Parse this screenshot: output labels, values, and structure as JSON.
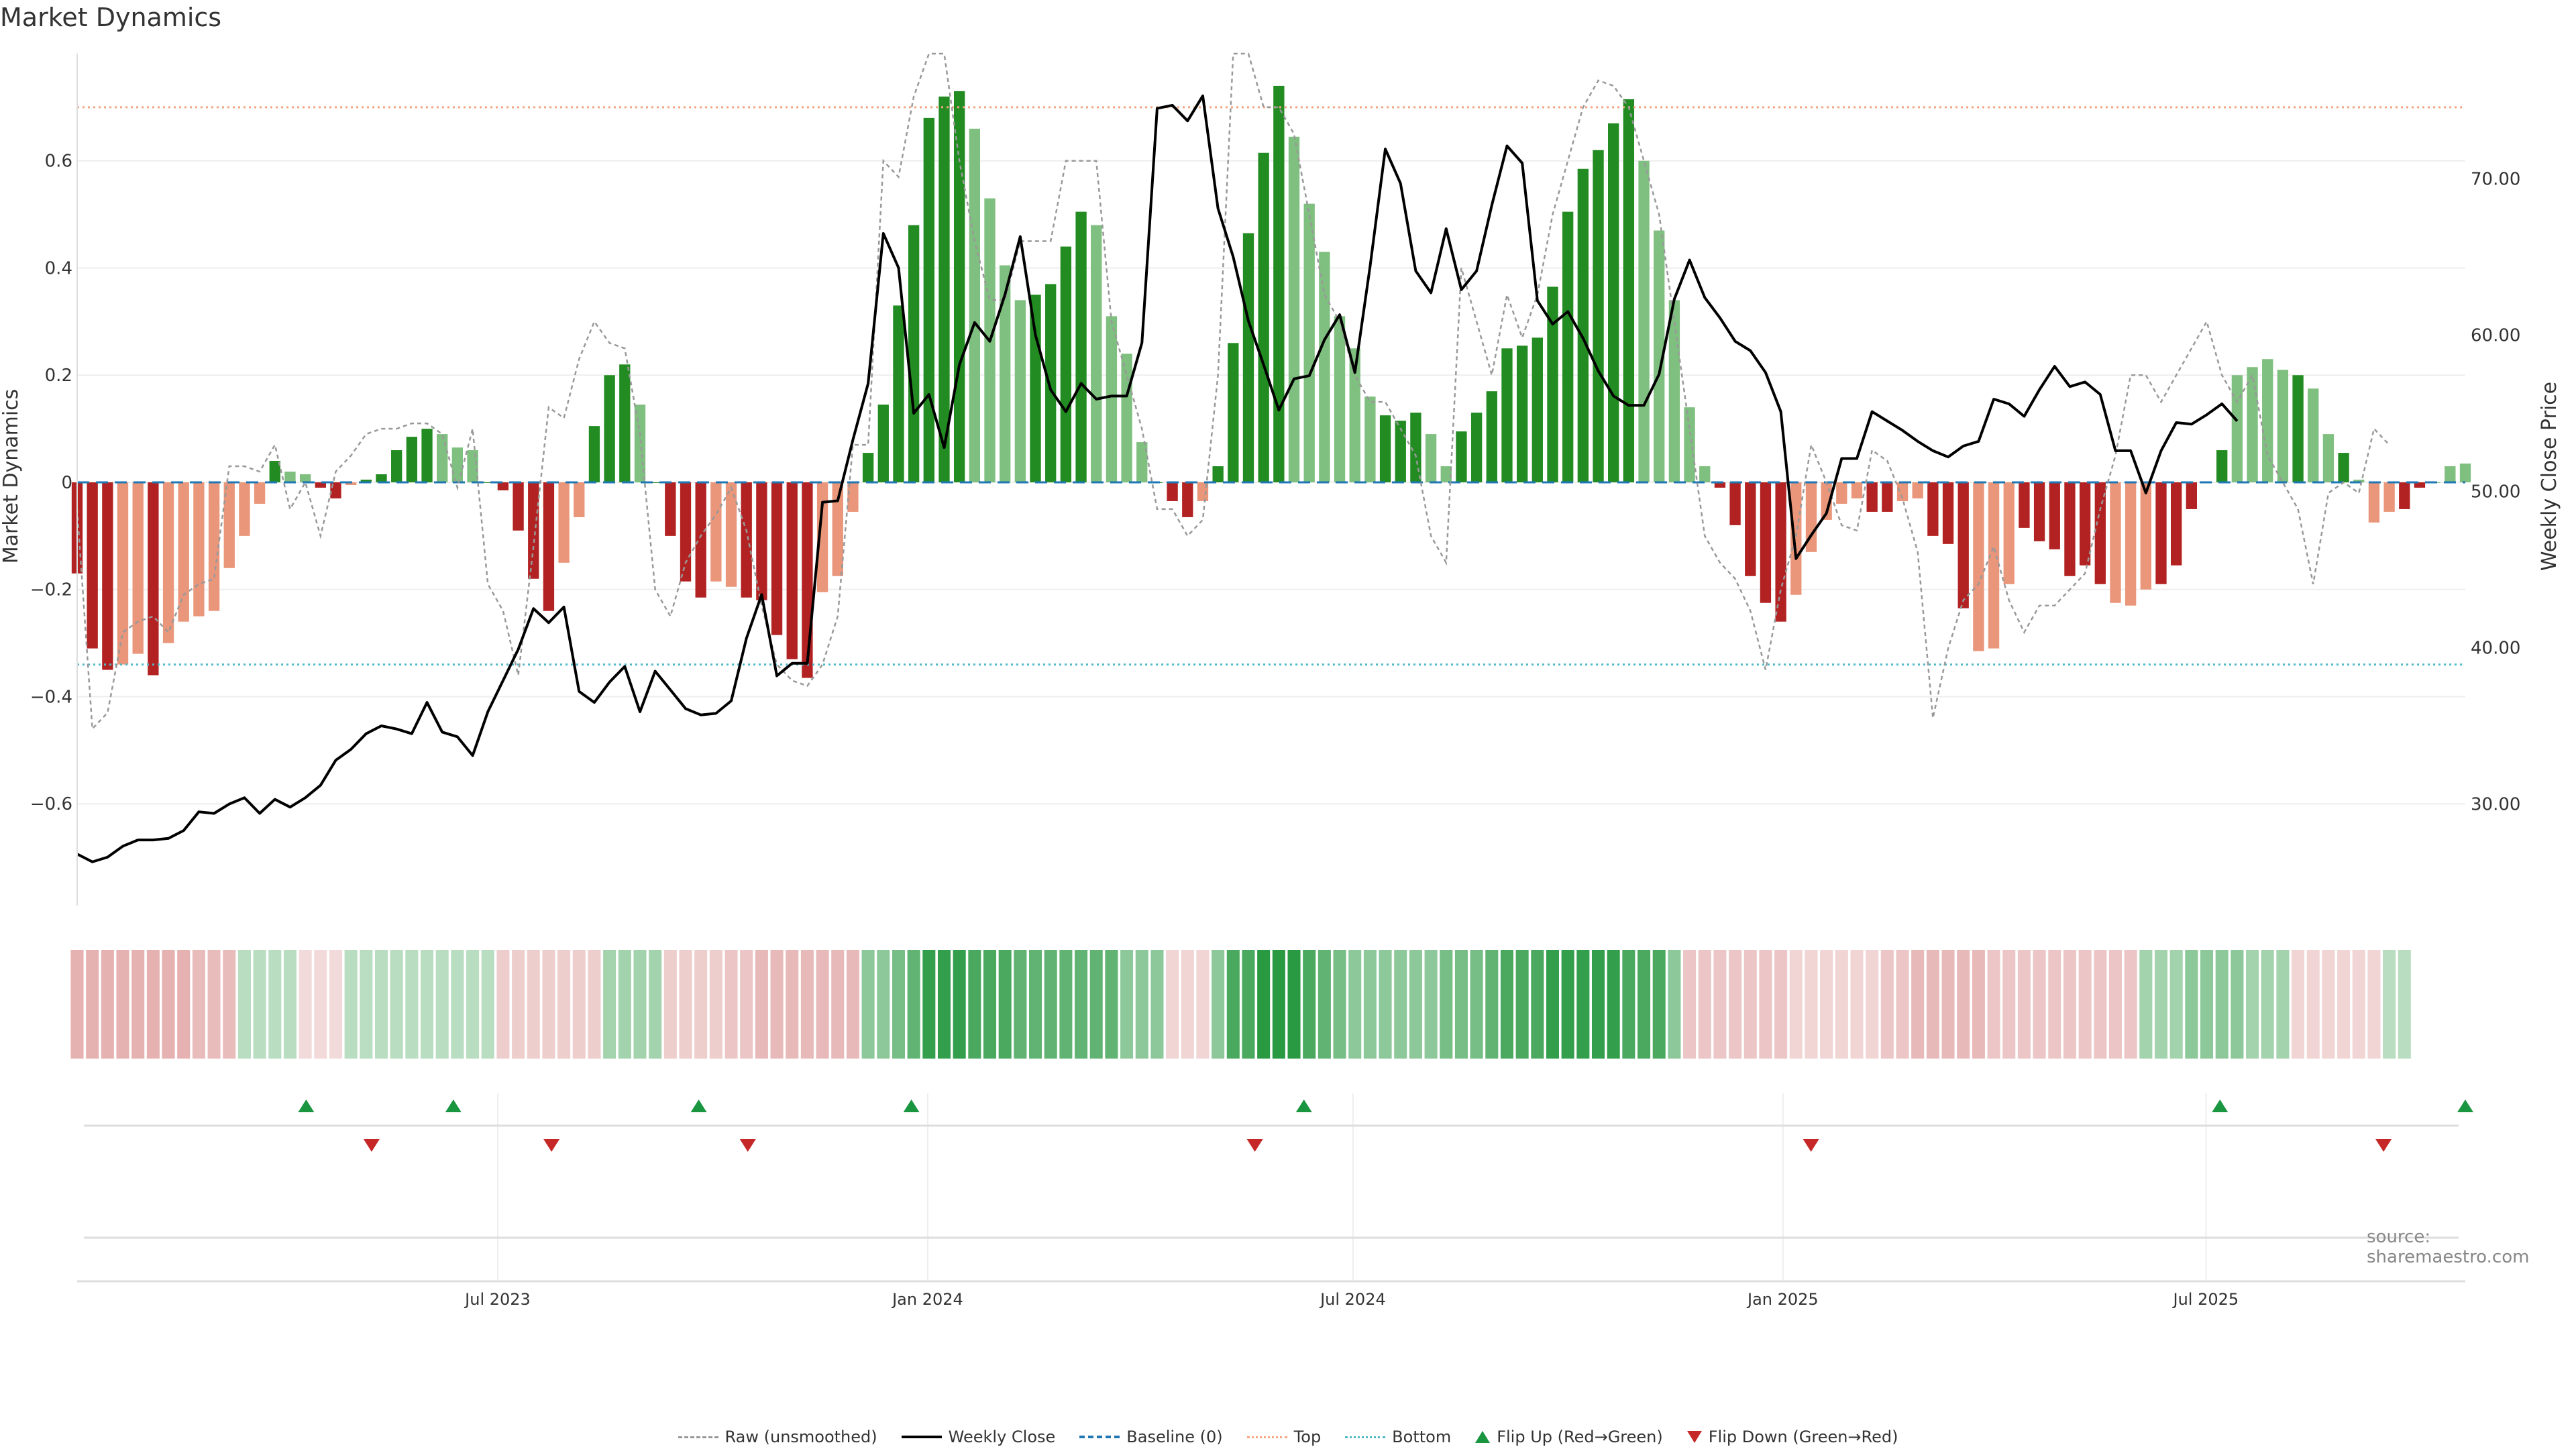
{
  "title": "Market Dynamics",
  "source": "source: sharemaestro.com",
  "colors": {
    "strong_green": "#228b22",
    "light_green": "#7fbf7f",
    "strong_red": "#b22222",
    "light_red": "#e9967a",
    "price": "#000000",
    "raw": "#999999",
    "baseline": "#1f77b4",
    "top": "#f4a582",
    "bottom": "#4fb9c8",
    "flip_up": "#1a9641",
    "flip_down": "#c62828"
  },
  "chart_data": {
    "type": "bar",
    "title": "Market Dynamics",
    "ylabel_left": "Market Dynamics",
    "ylabel_right": "Weekly Close Price",
    "left_ylim": [
      -0.79,
      0.8
    ],
    "left_yticks": [
      "0.6",
      "0.4",
      "0.2",
      "0",
      "−0.2",
      "−0.4",
      "−0.6"
    ],
    "left_ytick_values": [
      0.6,
      0.4,
      0.2,
      0,
      -0.2,
      -0.4,
      -0.6
    ],
    "right_ylim": [
      23.5,
      78
    ],
    "right_yticks": [
      "70.00",
      "60.00",
      "50.00",
      "40.00",
      "30.00"
    ],
    "right_ytick_values": [
      70,
      60,
      50,
      40,
      30
    ],
    "x_start": "2023-01-02",
    "x_end": "2025-10-20",
    "xticks": [
      {
        "date": "2023-07-01",
        "label": "Jul 2023"
      },
      {
        "date": "2024-01-01",
        "label": "Jan 2024"
      },
      {
        "date": "2024-07-01",
        "label": "Jul 2024"
      },
      {
        "date": "2025-01-01",
        "label": "Jan 2025"
      },
      {
        "date": "2025-07-01",
        "label": "Jul 2025"
      }
    ],
    "grid": true,
    "legend_position": "bottom-center",
    "top_level": 0.7,
    "bottom_level": -0.34,
    "baseline": 0,
    "dynamics": [
      -0.17,
      -0.31,
      -0.35,
      -0.34,
      -0.32,
      -0.36,
      -0.3,
      -0.26,
      -0.25,
      -0.24,
      -0.16,
      -0.1,
      -0.04,
      0.04,
      0.02,
      0.015,
      -0.01,
      -0.03,
      -0.005,
      0.005,
      0.015,
      0.06,
      0.085,
      0.1,
      0.09,
      0.065,
      0.06,
      0.0,
      -0.015,
      -0.09,
      -0.18,
      -0.24,
      -0.15,
      -0.065,
      0.105,
      0.2,
      0.22,
      0.145,
      0.0,
      -0.1,
      -0.185,
      -0.215,
      -0.185,
      -0.195,
      -0.215,
      -0.22,
      -0.285,
      -0.33,
      -0.365,
      -0.205,
      -0.175,
      -0.055,
      0.055,
      0.145,
      0.33,
      0.48,
      0.68,
      0.72,
      0.73,
      0.66,
      0.53,
      0.405,
      0.34,
      0.35,
      0.37,
      0.44,
      0.505,
      0.48,
      0.31,
      0.24,
      0.075,
      0.0,
      -0.035,
      -0.065,
      -0.035,
      0.03,
      0.26,
      0.465,
      0.615,
      0.74,
      0.645,
      0.52,
      0.43,
      0.31,
      0.25,
      0.16,
      0.125,
      0.115,
      0.13,
      0.09,
      0.03,
      0.095,
      0.13,
      0.17,
      0.25,
      0.255,
      0.27,
      0.365,
      0.505,
      0.585,
      0.62,
      0.67,
      0.715,
      0.6,
      0.47,
      0.34,
      0.14,
      0.03,
      -0.01,
      -0.08,
      -0.175,
      -0.225,
      -0.26,
      -0.21,
      -0.13,
      -0.07,
      -0.04,
      -0.03,
      -0.055,
      -0.055,
      -0.035,
      -0.03,
      -0.1,
      -0.115,
      -0.235,
      -0.315,
      -0.31,
      -0.19,
      -0.085,
      -0.11,
      -0.125,
      -0.175,
      -0.155,
      -0.19,
      -0.225,
      -0.23,
      -0.2,
      -0.19,
      -0.155,
      -0.05,
      0.0,
      0.06,
      0.2,
      0.215,
      0.23,
      0.21,
      0.2,
      0.175,
      0.09,
      0.055,
      0.005,
      -0.075,
      -0.055,
      -0.05,
      -0.01,
      0.0,
      0.03,
      0.035
    ],
    "bar_shade": [
      "s",
      "s",
      "s",
      "l",
      "l",
      "s",
      "l",
      "l",
      "l",
      "l",
      "l",
      "l",
      "l",
      "s",
      "l",
      "l",
      "s",
      "s",
      "l",
      "s",
      "s",
      "s",
      "s",
      "s",
      "l",
      "l",
      "l",
      "s",
      "s",
      "s",
      "s",
      "s",
      "l",
      "l",
      "s",
      "s",
      "s",
      "l",
      "s",
      "s",
      "s",
      "s",
      "l",
      "l",
      "s",
      "s",
      "s",
      "s",
      "s",
      "l",
      "l",
      "l",
      "s",
      "s",
      "s",
      "s",
      "s",
      "s",
      "s",
      "l",
      "l",
      "l",
      "l",
      "s",
      "s",
      "s",
      "s",
      "l",
      "l",
      "l",
      "l",
      "s",
      "s",
      "s",
      "l",
      "s",
      "s",
      "s",
      "s",
      "s",
      "l",
      "l",
      "l",
      "l",
      "l",
      "l",
      "s",
      "s",
      "s",
      "l",
      "l",
      "s",
      "s",
      "s",
      "s",
      "s",
      "s",
      "s",
      "s",
      "s",
      "s",
      "s",
      "s",
      "l",
      "l",
      "l",
      "l",
      "l",
      "s",
      "s",
      "s",
      "s",
      "s",
      "l",
      "l",
      "l",
      "l",
      "l",
      "s",
      "s",
      "l",
      "l",
      "s",
      "s",
      "s",
      "l",
      "l",
      "l",
      "s",
      "s",
      "s",
      "s",
      "s",
      "s",
      "l",
      "l",
      "l",
      "s",
      "s",
      "s",
      "s",
      "s",
      "l",
      "l",
      "l",
      "l",
      "s",
      "l",
      "l",
      "s",
      "l",
      "l",
      "l",
      "s",
      "s"
    ],
    "raw": [
      -0.05,
      -0.46,
      -0.43,
      -0.28,
      -0.26,
      -0.25,
      -0.28,
      -0.21,
      -0.19,
      -0.18,
      0.03,
      0.03,
      0.02,
      0.07,
      -0.05,
      0.0,
      -0.1,
      0.02,
      0.05,
      0.09,
      0.1,
      0.1,
      0.11,
      0.11,
      0.09,
      -0.01,
      0.1,
      -0.19,
      -0.24,
      -0.36,
      -0.12,
      0.14,
      0.12,
      0.23,
      0.3,
      0.26,
      0.25,
      0.09,
      -0.2,
      -0.25,
      -0.15,
      -0.1,
      -0.06,
      -0.01,
      -0.09,
      -0.23,
      -0.34,
      -0.37,
      -0.38,
      -0.34,
      -0.25,
      0.07,
      0.07,
      0.6,
      0.57,
      0.72,
      0.8,
      0.8,
      0.6,
      0.45,
      0.34,
      0.34,
      0.45,
      0.45,
      0.45,
      0.6,
      0.6,
      0.6,
      0.3,
      0.2,
      0.1,
      -0.05,
      -0.05,
      -0.1,
      -0.07,
      0.2,
      0.8,
      0.8,
      0.7,
      0.7,
      0.65,
      0.5,
      0.35,
      0.3,
      0.2,
      0.15,
      0.15,
      0.1,
      0.05,
      -0.1,
      -0.15,
      0.4,
      0.3,
      0.2,
      0.35,
      0.27,
      0.35,
      0.5,
      0.6,
      0.7,
      0.75,
      0.74,
      0.7,
      0.6,
      0.5,
      0.3,
      0.1,
      -0.1,
      -0.15,
      -0.18,
      -0.24,
      -0.35,
      -0.2,
      -0.1,
      0.07,
      0.0,
      -0.08,
      -0.09,
      0.06,
      0.04,
      -0.03,
      -0.13,
      -0.44,
      -0.31,
      -0.22,
      -0.19,
      -0.12,
      -0.22,
      -0.28,
      -0.23,
      -0.23,
      -0.2,
      -0.17,
      -0.05,
      0.05,
      0.2,
      0.2,
      0.15,
      0.2,
      0.25,
      0.3,
      0.2,
      0.15,
      0.2,
      0.05,
      0.0,
      -0.05,
      -0.19,
      -0.02,
      0.0,
      -0.02,
      0.1,
      0.07
    ],
    "weekly_close": [
      26.8,
      26.3,
      26.6,
      27.3,
      27.7,
      27.7,
      27.8,
      28.3,
      29.5,
      29.4,
      30.0,
      30.4,
      29.4,
      30.3,
      29.8,
      30.4,
      31.2,
      32.8,
      33.5,
      34.5,
      35.0,
      34.8,
      34.5,
      36.5,
      34.6,
      34.3,
      33.1,
      35.9,
      37.9,
      39.9,
      42.5,
      41.6,
      42.6,
      37.2,
      36.5,
      37.8,
      38.8,
      35.9,
      38.5,
      37.3,
      36.1,
      35.7,
      35.8,
      36.6,
      40.6,
      43.4,
      38.2,
      39.0,
      39.0,
      49.3,
      49.4,
      53.3,
      56.9,
      66.5,
      64.3,
      55.0,
      56.2,
      52.8,
      58.1,
      60.8,
      59.6,
      62.6,
      66.3,
      60.0,
      56.5,
      55.1,
      56.9,
      55.9,
      56.1,
      56.1,
      59.5,
      74.5,
      74.7,
      73.7,
      75.3,
      68.1,
      65.0,
      60.9,
      58.1,
      55.2,
      57.2,
      57.4,
      59.7,
      61.3,
      57.6,
      64.4,
      71.9,
      69.7,
      64.1,
      62.7,
      66.8,
      62.9,
      64.1,
      68.3,
      72.1,
      71.0,
      62.2,
      60.7,
      61.5,
      59.8,
      57.7,
      56.1,
      55.5,
      55.5,
      57.5,
      62.3,
      64.8,
      62.4,
      61.1,
      59.6,
      59.0,
      57.6,
      55.1,
      45.7,
      47.2,
      48.6,
      52.1,
      52.1,
      55.1,
      54.5,
      53.9,
      53.2,
      52.6,
      52.2,
      52.9,
      53.2,
      55.9,
      55.6,
      54.8,
      56.5,
      58.0,
      56.7,
      57.0,
      56.2,
      52.6,
      52.6,
      49.9,
      52.6,
      54.4,
      54.3,
      54.9,
      55.6,
      54.5
    ],
    "heat_strip": [
      -0.35,
      -0.35,
      -0.35,
      -0.35,
      -0.35,
      -0.35,
      -0.35,
      -0.35,
      -0.26,
      -0.26,
      -0.26,
      0.1,
      0.1,
      0.1,
      0.1,
      -0.05,
      -0.05,
      -0.05,
      0.1,
      0.1,
      0.1,
      0.1,
      0.1,
      0.1,
      0.1,
      0.1,
      0.1,
      0.1,
      -0.15,
      -0.15,
      -0.15,
      -0.15,
      -0.15,
      -0.15,
      -0.15,
      0.2,
      0.2,
      0.2,
      0.2,
      -0.15,
      -0.15,
      -0.15,
      -0.15,
      -0.2,
      -0.2,
      -0.3,
      -0.3,
      -0.3,
      -0.3,
      -0.3,
      -0.3,
      -0.3,
      0.3,
      0.3,
      0.4,
      0.5,
      0.7,
      0.7,
      0.7,
      0.6,
      0.6,
      0.6,
      0.5,
      0.5,
      0.5,
      0.5,
      0.5,
      0.5,
      0.5,
      0.3,
      0.3,
      0.3,
      -0.1,
      -0.1,
      -0.1,
      0.3,
      0.6,
      0.6,
      0.75,
      0.75,
      0.75,
      0.6,
      0.5,
      0.4,
      0.3,
      0.3,
      0.3,
      0.3,
      0.3,
      0.3,
      0.4,
      0.4,
      0.4,
      0.5,
      0.6,
      0.6,
      0.6,
      0.7,
      0.7,
      0.7,
      0.7,
      0.7,
      0.6,
      0.6,
      0.6,
      0.3,
      -0.2,
      -0.2,
      -0.2,
      -0.2,
      -0.2,
      -0.2,
      -0.2,
      -0.1,
      -0.1,
      -0.1,
      -0.1,
      -0.1,
      -0.1,
      -0.2,
      -0.2,
      -0.3,
      -0.3,
      -0.3,
      -0.3,
      -0.3,
      -0.2,
      -0.2,
      -0.2,
      -0.2,
      -0.2,
      -0.2,
      -0.2,
      -0.2,
      -0.2,
      -0.2,
      0.2,
      0.2,
      0.2,
      0.3,
      0.3,
      0.3,
      0.3,
      0.2,
      0.2,
      0.2,
      -0.1,
      -0.1,
      -0.1,
      -0.1,
      -0.1,
      -0.1,
      0.1,
      0.1
    ],
    "flip_up_dates": [
      "2023-04-10",
      "2023-06-12",
      "2023-09-25",
      "2023-12-25",
      "2024-06-10",
      "2025-07-07",
      "2025-10-20"
    ],
    "flip_down_dates": [
      "2023-05-08",
      "2023-07-24",
      "2023-10-16",
      "2024-05-20",
      "2025-01-13",
      "2025-09-15"
    ],
    "series": [
      {
        "name": "Raw (unsmoothed)"
      },
      {
        "name": "Weekly Close"
      },
      {
        "name": "Baseline (0)"
      },
      {
        "name": "Top"
      },
      {
        "name": "Bottom"
      },
      {
        "name": "Flip Up (Red→Green)"
      },
      {
        "name": "Flip Down (Green→Red)"
      }
    ]
  }
}
